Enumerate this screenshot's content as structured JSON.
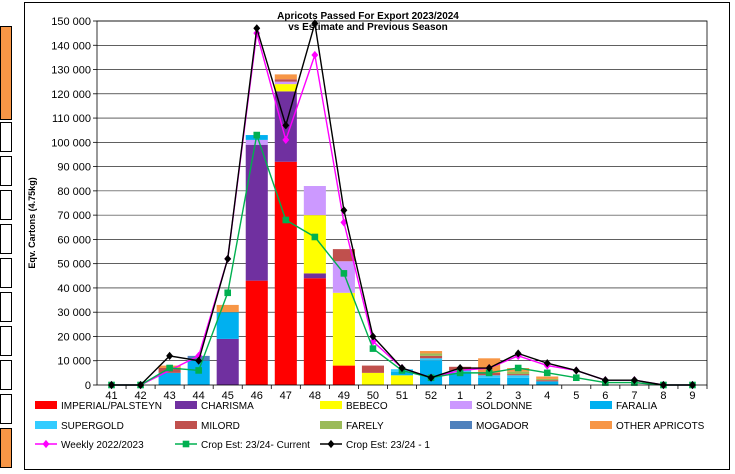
{
  "chart_data": {
    "type": "bar",
    "title": "Apricots Passed For Export 2023/2024",
    "subtitle": "vs Estimate and Previous Season",
    "ylabel": "Eqv. Cartons (4.75kg)",
    "xlabel": "",
    "ylim": [
      0,
      150000
    ],
    "ytick_step": 10000,
    "ytick_labels": [
      "0",
      "10 000",
      "20 000",
      "30 000",
      "40 000",
      "50 000",
      "60 000",
      "70 000",
      "80 000",
      "90 000",
      "100 000",
      "110 000",
      "120 000",
      "130 000",
      "140 000",
      "150 000"
    ],
    "grid": true,
    "legend_position": "bottom",
    "categories": [
      "41",
      "42",
      "43",
      "44",
      "45",
      "46",
      "47",
      "48",
      "49",
      "50",
      "51",
      "52",
      "1",
      "2",
      "3",
      "4",
      "5",
      "6",
      "7",
      "8",
      "9"
    ],
    "stacked_series": [
      {
        "name": "IMPERIAL/PALSTEYN",
        "color": "#ff0000",
        "values": [
          0,
          0,
          0,
          0,
          0,
          43000,
          92000,
          44000,
          8000,
          0,
          0,
          0,
          0,
          0,
          0,
          0,
          0,
          0,
          0,
          0,
          0
        ]
      },
      {
        "name": "CHARISMA",
        "color": "#7030a0",
        "values": [
          0,
          0,
          0,
          0,
          19000,
          56000,
          29000,
          2000,
          0,
          0,
          0,
          0,
          0,
          0,
          0,
          0,
          0,
          0,
          0,
          0,
          0
        ]
      },
      {
        "name": "BEBECO",
        "color": "#ffff00",
        "values": [
          0,
          0,
          0,
          0,
          0,
          0,
          3000,
          24000,
          30000,
          5000,
          4000,
          0,
          0,
          0,
          0,
          0,
          0,
          0,
          0,
          0,
          0
        ]
      },
      {
        "name": "SOLDONNE",
        "color": "#cc99ff",
        "values": [
          0,
          0,
          0,
          0,
          0,
          2000,
          1000,
          12000,
          13000,
          0,
          0,
          0,
          0,
          0,
          0,
          0,
          0,
          0,
          0,
          0,
          0
        ]
      },
      {
        "name": "FARALIA",
        "color": "#00b0f0",
        "values": [
          0,
          0,
          5000,
          10000,
          11000,
          2000,
          0,
          0,
          0,
          0,
          1500,
          10000,
          5000,
          3000,
          3000,
          1500,
          0,
          0,
          0,
          0,
          0
        ]
      },
      {
        "name": "SUPERGOLD",
        "color": "#33ccff",
        "values": [
          0,
          0,
          0,
          0,
          0,
          0,
          0,
          0,
          0,
          0,
          1000,
          1000,
          1000,
          1000,
          1000,
          0,
          0,
          0,
          0,
          0,
          0
        ]
      },
      {
        "name": "MILORD",
        "color": "#c0504d",
        "values": [
          0,
          0,
          2000,
          0,
          0,
          0,
          1000,
          0,
          5000,
          3000,
          0,
          1000,
          1500,
          1000,
          500,
          500,
          0,
          0,
          0,
          0,
          0
        ]
      },
      {
        "name": "FARELY",
        "color": "#9bbb59",
        "values": [
          0,
          0,
          0,
          0,
          0,
          0,
          0,
          0,
          0,
          0,
          0,
          1000,
          0,
          0,
          1000,
          500,
          0,
          0,
          0,
          0,
          0
        ]
      },
      {
        "name": "MOGADOR",
        "color": "#4f81bd",
        "values": [
          0,
          0,
          0,
          2000,
          0,
          0,
          0,
          0,
          0,
          0,
          0,
          0,
          0,
          0,
          0,
          0,
          0,
          0,
          0,
          0,
          0
        ]
      },
      {
        "name": "OTHER APRICOTS",
        "color": "#f79646",
        "values": [
          0,
          0,
          1000,
          0,
          3000,
          0,
          2000,
          0,
          0,
          0,
          0,
          1000,
          0,
          6000,
          1500,
          1000,
          0,
          0,
          0,
          0,
          0
        ]
      }
    ],
    "line_series": [
      {
        "name": "Weekly 2022/2023",
        "color": "#ff00ff",
        "marker": "diamond",
        "values": [
          0,
          0,
          null,
          12000,
          52000,
          145000,
          101000,
          136000,
          67000,
          18000,
          7000,
          3000,
          6000,
          7000,
          12000,
          8000,
          6000,
          2000,
          2000,
          0,
          0
        ]
      },
      {
        "name": "Crop Est: 23/24- Current",
        "color": "#00b050",
        "marker": "square",
        "values": [
          0,
          0,
          7000,
          6000,
          38000,
          103000,
          68000,
          61000,
          46000,
          15000,
          6000,
          3000,
          5000,
          5000,
          7000,
          5000,
          3000,
          1000,
          1000,
          0,
          0
        ]
      },
      {
        "name": "Crop Est: 23/24 - 1",
        "color": "#000000",
        "marker": "diamond",
        "values": [
          0,
          0,
          12000,
          10000,
          52000,
          147000,
          107000,
          149000,
          72000,
          20000,
          7000,
          3000,
          7000,
          7000,
          13000,
          9000,
          6000,
          2000,
          2000,
          0,
          0
        ]
      }
    ]
  }
}
